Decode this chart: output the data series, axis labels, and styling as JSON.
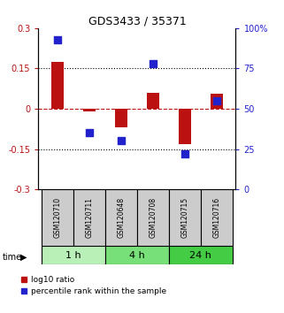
{
  "title": "GDS3433 / 35371",
  "samples": [
    "GSM120710",
    "GSM120711",
    "GSM120648",
    "GSM120708",
    "GSM120715",
    "GSM120716"
  ],
  "groups": [
    {
      "label": "1 h",
      "indices": [
        0,
        1
      ],
      "color": "#b8f0b8"
    },
    {
      "label": "4 h",
      "indices": [
        2,
        3
      ],
      "color": "#78e078"
    },
    {
      "label": "24 h",
      "indices": [
        4,
        5
      ],
      "color": "#44cc44"
    }
  ],
  "log10_ratio": [
    0.175,
    -0.01,
    -0.07,
    0.06,
    -0.13,
    0.055
  ],
  "percentile_rank": [
    93,
    35,
    30,
    78,
    22,
    55
  ],
  "bar_color": "#bb1111",
  "dot_color": "#2222cc",
  "ylim_left": [
    -0.3,
    0.3
  ],
  "ylim_right": [
    0,
    100
  ],
  "yticks_left": [
    -0.3,
    -0.15,
    0.0,
    0.15,
    0.3
  ],
  "yticks_right": [
    0,
    25,
    50,
    75,
    100
  ],
  "ytick_labels_left": [
    "-0.3",
    "-0.15",
    "0",
    "0.15",
    "0.3"
  ],
  "ytick_labels_right": [
    "0",
    "25",
    "50",
    "75",
    "100%"
  ],
  "hline_dotted": [
    -0.15,
    0.15
  ],
  "hline_dashed_red": 0.0,
  "bar_width": 0.4,
  "dot_size": 28,
  "sample_box_color": "#cccccc",
  "sample_box_edge": "#000000",
  "time_label": "time",
  "legend_red_label": "log10 ratio",
  "legend_blue_label": "percentile rank within the sample",
  "legend_marker_color_red": "#bb1111",
  "legend_marker_color_blue": "#2222cc",
  "bg_color": "#ffffff"
}
